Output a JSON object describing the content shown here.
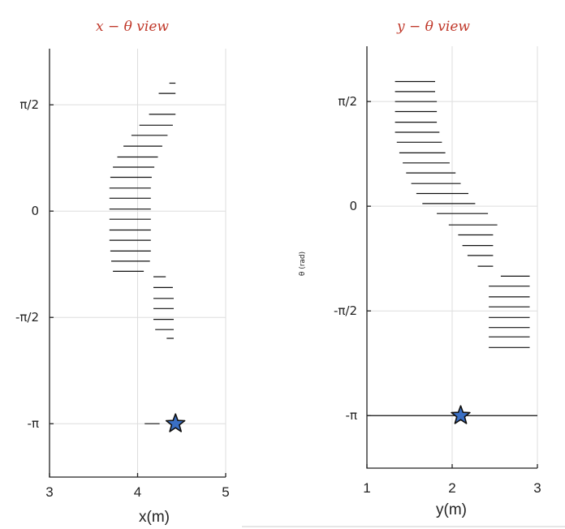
{
  "chart_data": [
    {
      "type": "line",
      "title": "x − θ view",
      "xlabel": "x(m)",
      "ylabel": "",
      "xlim": [
        3,
        5
      ],
      "ylim": [
        -3.93,
        2.4
      ],
      "xticks": [
        3,
        4,
        5
      ],
      "xtick_labels": [
        "3",
        "4",
        "5"
      ],
      "yticks": [
        1.5708,
        0,
        -1.5708,
        -3.1416
      ],
      "ytick_labels": [
        "π/2",
        "0",
        "-π/2",
        "-π"
      ],
      "grid": true,
      "segments": [
        {
          "x": [
            4.36,
            4.43
          ],
          "y": 1.89
        },
        {
          "x": [
            4.24,
            4.43
          ],
          "y": 1.74
        },
        {
          "x": [
            4.13,
            4.43
          ],
          "y": 1.43
        },
        {
          "x": [
            4.02,
            4.4
          ],
          "y": 1.27
        },
        {
          "x": [
            3.93,
            4.34
          ],
          "y": 1.12
        },
        {
          "x": [
            3.84,
            4.28
          ],
          "y": 0.96
        },
        {
          "x": [
            3.77,
            4.23
          ],
          "y": 0.8
        },
        {
          "x": [
            3.72,
            4.19
          ],
          "y": 0.65
        },
        {
          "x": [
            3.69,
            4.16
          ],
          "y": 0.5
        },
        {
          "x": [
            3.68,
            4.15
          ],
          "y": 0.34
        },
        {
          "x": [
            3.68,
            4.15
          ],
          "y": 0.19
        },
        {
          "x": [
            3.68,
            4.15
          ],
          "y": 0.03
        },
        {
          "x": [
            3.68,
            4.15
          ],
          "y": -0.12
        },
        {
          "x": [
            3.68,
            4.15
          ],
          "y": -0.28
        },
        {
          "x": [
            3.68,
            4.15
          ],
          "y": -0.43
        },
        {
          "x": [
            3.69,
            4.15
          ],
          "y": -0.59
        },
        {
          "x": [
            3.7,
            4.14
          ],
          "y": -0.74
        },
        {
          "x": [
            3.72,
            4.07
          ],
          "y": -0.89
        },
        {
          "x": [
            4.18,
            4.32
          ],
          "y": -0.97
        },
        {
          "x": [
            4.18,
            4.4
          ],
          "y": -1.13
        },
        {
          "x": [
            4.18,
            4.41
          ],
          "y": -1.29
        },
        {
          "x": [
            4.18,
            4.41
          ],
          "y": -1.44
        },
        {
          "x": [
            4.18,
            4.41
          ],
          "y": -1.6
        },
        {
          "x": [
            4.2,
            4.41
          ],
          "y": -1.75
        },
        {
          "x": [
            4.33,
            4.41
          ],
          "y": -1.88
        },
        {
          "x": [
            4.08,
            4.25
          ],
          "y": -3.1416
        }
      ],
      "goal": {
        "x": 4.43,
        "y": -3.1416,
        "marker": "star",
        "color": "#3a6fc4"
      }
    },
    {
      "type": "line",
      "title": "y − θ view",
      "xlabel": "y(m)",
      "ylabel": "θ (rad)",
      "xlim": [
        1,
        3
      ],
      "ylim": [
        -3.93,
        2.4
      ],
      "xticks": [
        1,
        2,
        3
      ],
      "xtick_labels": [
        "1",
        "2",
        "3"
      ],
      "yticks": [
        1.5708,
        0,
        -1.5708,
        -3.1416
      ],
      "ytick_labels": [
        "π/2",
        "0",
        "-π/2",
        "-π"
      ],
      "grid": true,
      "segments": [
        {
          "x": [
            1.33,
            1.8
          ],
          "y": 1.87
        },
        {
          "x": [
            1.33,
            1.8
          ],
          "y": 1.72
        },
        {
          "x": [
            1.33,
            1.82
          ],
          "y": 1.57
        },
        {
          "x": [
            1.33,
            1.82
          ],
          "y": 1.42
        },
        {
          "x": [
            1.33,
            1.82
          ],
          "y": 1.26
        },
        {
          "x": [
            1.33,
            1.85
          ],
          "y": 1.11
        },
        {
          "x": [
            1.35,
            1.88
          ],
          "y": 0.96
        },
        {
          "x": [
            1.38,
            1.92
          ],
          "y": 0.8
        },
        {
          "x": [
            1.42,
            1.97
          ],
          "y": 0.65
        },
        {
          "x": [
            1.46,
            2.04
          ],
          "y": 0.5
        },
        {
          "x": [
            1.52,
            2.1
          ],
          "y": 0.34
        },
        {
          "x": [
            1.58,
            2.19
          ],
          "y": 0.19
        },
        {
          "x": [
            1.65,
            2.27
          ],
          "y": 0.04
        },
        {
          "x": [
            1.82,
            2.42
          ],
          "y": -0.11
        },
        {
          "x": [
            1.96,
            2.53
          ],
          "y": -0.28
        },
        {
          "x": [
            2.07,
            2.48
          ],
          "y": -0.43
        },
        {
          "x": [
            2.12,
            2.48
          ],
          "y": -0.59
        },
        {
          "x": [
            2.18,
            2.48
          ],
          "y": -0.74
        },
        {
          "x": [
            2.3,
            2.48
          ],
          "y": -0.9
        },
        {
          "x": [
            2.57,
            2.91
          ],
          "y": -1.05
        },
        {
          "x": [
            2.43,
            2.91
          ],
          "y": -1.2
        },
        {
          "x": [
            2.43,
            2.91
          ],
          "y": -1.36
        },
        {
          "x": [
            2.43,
            2.91
          ],
          "y": -1.51
        },
        {
          "x": [
            2.43,
            2.91
          ],
          "y": -1.67
        },
        {
          "x": [
            2.43,
            2.91
          ],
          "y": -1.82
        },
        {
          "x": [
            2.43,
            2.91
          ],
          "y": -1.96
        },
        {
          "x": [
            2.43,
            2.91
          ],
          "y": -2.12
        }
      ],
      "hline": {
        "x": [
          1,
          3
        ],
        "y": -3.1416
      },
      "goal": {
        "x": 2.1,
        "y": -3.1416,
        "marker": "star",
        "color": "#3a6fc4"
      }
    }
  ]
}
